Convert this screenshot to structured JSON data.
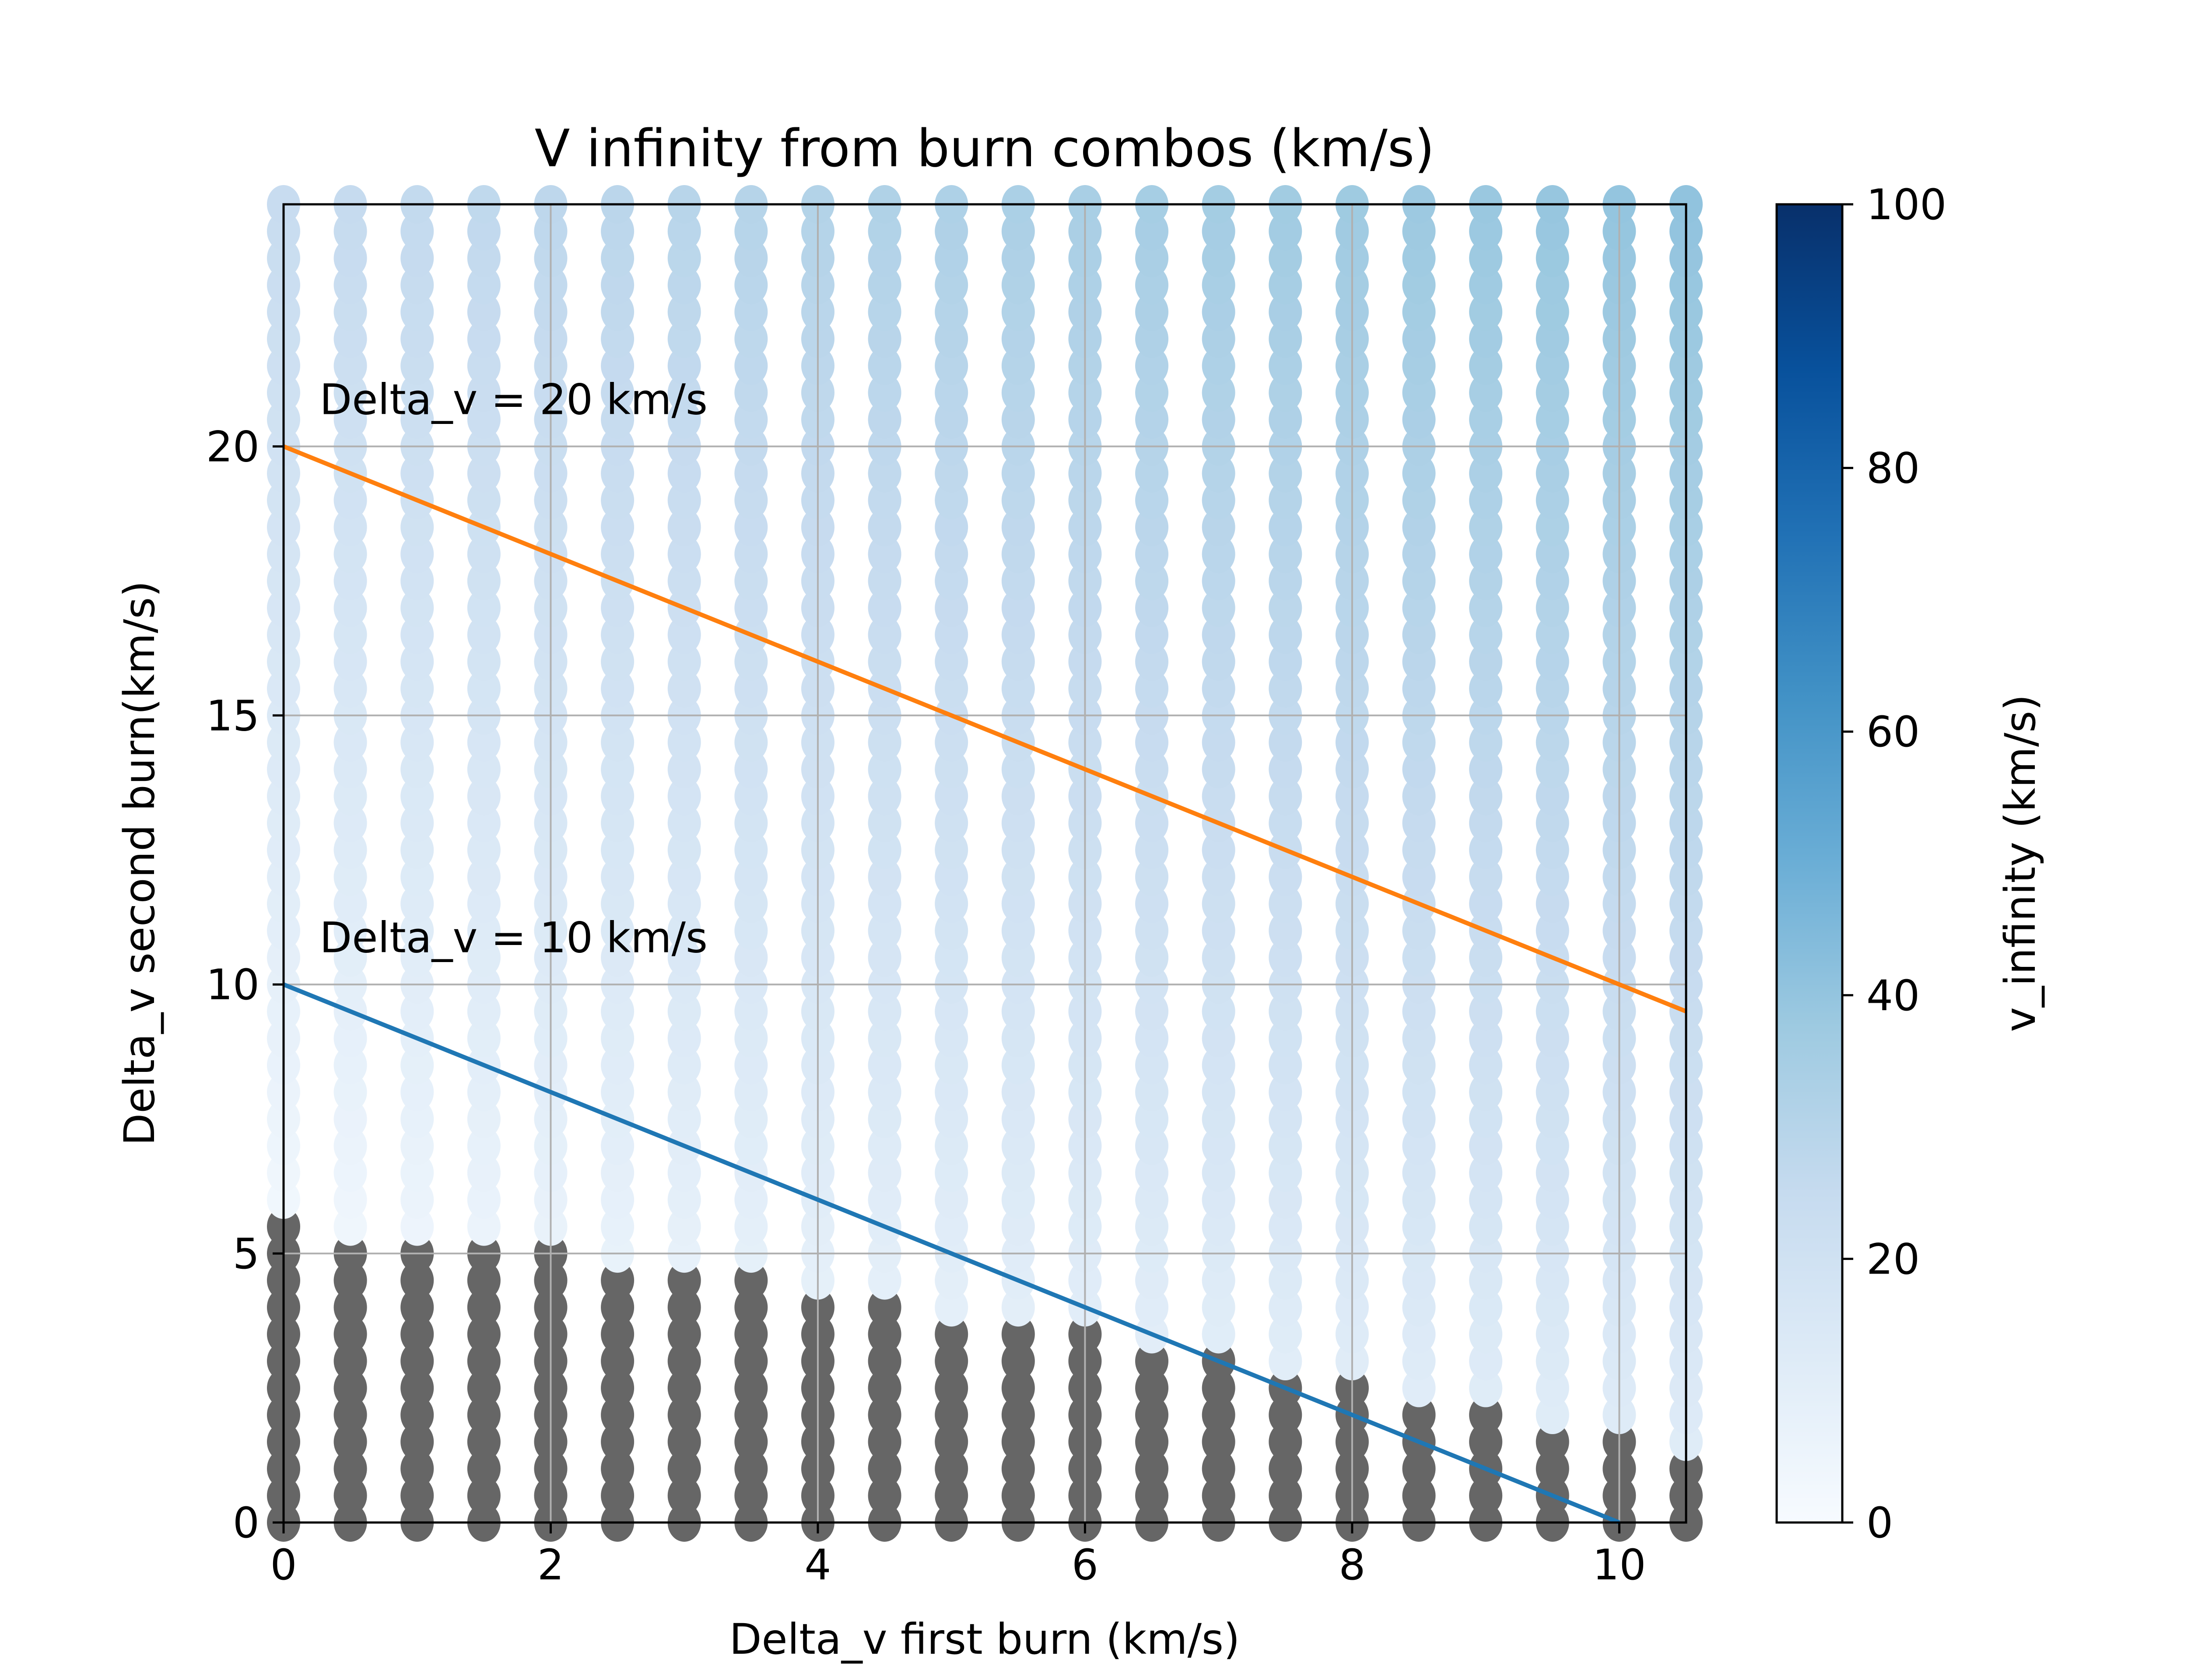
{
  "chart_data": {
    "type": "scatter",
    "title": "V infinity from burn combos (km/s)",
    "xlabel": "Delta_v first burn (km/s)",
    "ylabel": "Delta_v second burn(km/s)",
    "xlim": [
      0,
      10.5
    ],
    "ylim": [
      0,
      24.5
    ],
    "xticks": [
      0,
      2,
      4,
      6,
      8,
      10
    ],
    "yticks": [
      0,
      5,
      10,
      15,
      20
    ],
    "grid": true,
    "grid_spacing": {
      "x": 0.5,
      "y": 0.5
    },
    "grid_range": {
      "x": [
        0,
        10.5
      ],
      "y": [
        0,
        24.5
      ]
    },
    "colorbar": {
      "label": "v_infinity (km/s)",
      "range": [
        0,
        100
      ],
      "ticks": [
        0,
        20,
        40,
        60,
        80,
        100
      ],
      "colormap": "Blues",
      "stops": [
        "#f7fbff",
        "#deebf7",
        "#c6dbef",
        "#9ecae1",
        "#6baed6",
        "#4292c6",
        "#2171b5",
        "#08519c",
        "#08306b"
      ]
    },
    "bound_color": "#666666",
    "bound_note": "gray points where v_infinity is undefined",
    "bound_threshold": [
      {
        "x": 0,
        "y_max": 5.5
      },
      {
        "x": 0.5,
        "y_max": 5.0
      },
      {
        "x": 1.0,
        "y_max": 5.0
      },
      {
        "x": 1.5,
        "y_max": 5.0
      },
      {
        "x": 2.0,
        "y_max": 5.0
      },
      {
        "x": 2.5,
        "y_max": 4.5
      },
      {
        "x": 3.0,
        "y_max": 4.5
      },
      {
        "x": 3.5,
        "y_max": 4.5
      },
      {
        "x": 4.0,
        "y_max": 4.0
      },
      {
        "x": 4.5,
        "y_max": 4.0
      },
      {
        "x": 5.0,
        "y_max": 3.5
      },
      {
        "x": 5.5,
        "y_max": 3.5
      },
      {
        "x": 6.0,
        "y_max": 3.5
      },
      {
        "x": 6.5,
        "y_max": 3.0
      },
      {
        "x": 7.0,
        "y_max": 3.0
      },
      {
        "x": 7.5,
        "y_max": 2.5
      },
      {
        "x": 8.0,
        "y_max": 2.5
      },
      {
        "x": 8.5,
        "y_max": 2.0
      },
      {
        "x": 9.0,
        "y_max": 2.0
      },
      {
        "x": 9.5,
        "y_max": 1.5
      },
      {
        "x": 10.0,
        "y_max": 1.5
      },
      {
        "x": 10.5,
        "y_max": 1.0
      }
    ],
    "lines": [
      {
        "label": "Delta_v = 10 km/s",
        "color": "#1f77b4",
        "x": [
          0,
          10
        ],
        "y": [
          10,
          0
        ]
      },
      {
        "label": "Delta_v = 20 km/s",
        "color": "#ff7f0e",
        "x": [
          0,
          10.5
        ],
        "y": [
          20,
          9.5
        ]
      }
    ],
    "annotations": [
      {
        "text": "Delta_v = 20 km/s",
        "x": 0.27,
        "y": 20.6
      },
      {
        "text": "Delta_v = 10 km/s",
        "x": 0.27,
        "y": 10.6
      }
    ]
  }
}
